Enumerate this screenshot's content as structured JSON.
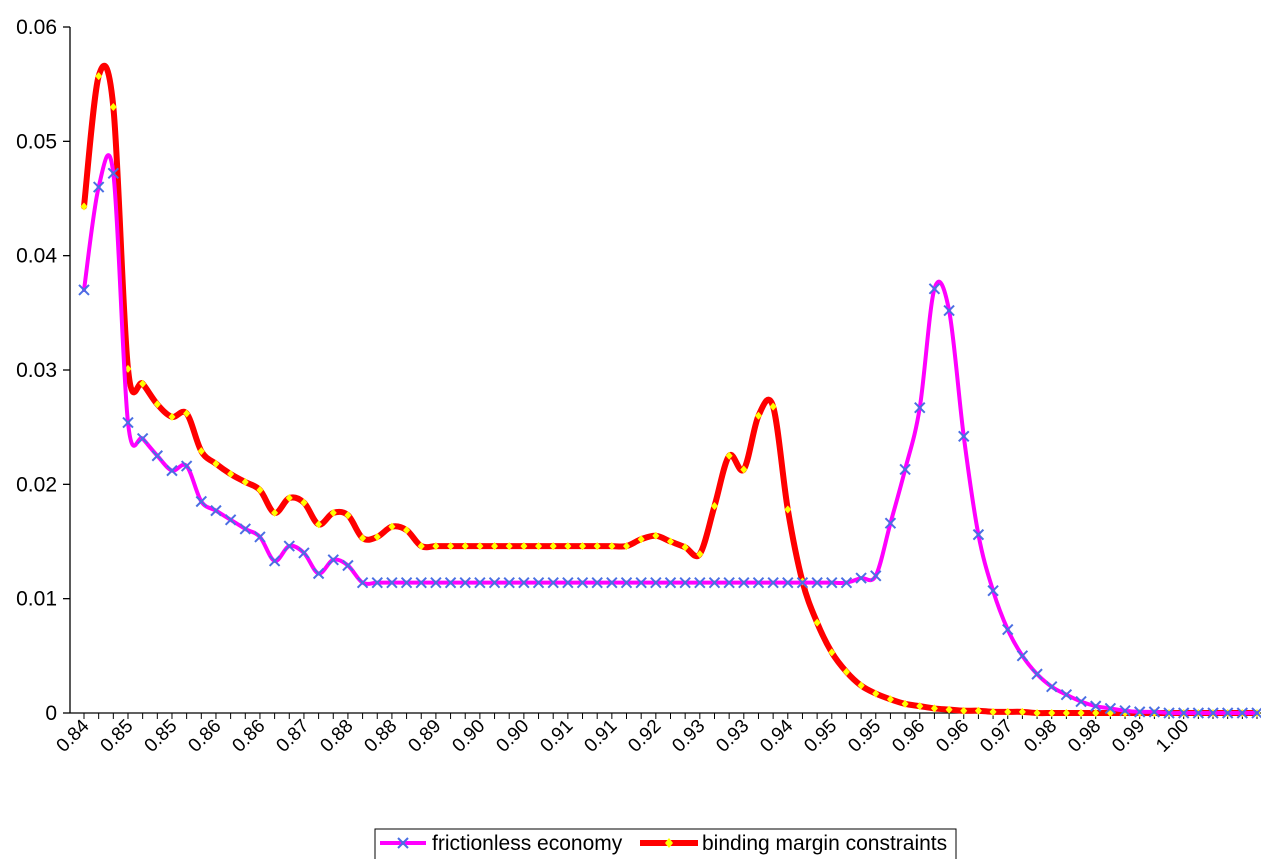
{
  "chart_data": {
    "type": "line",
    "title": "",
    "xlabel": "",
    "ylabel": "",
    "ylim": [
      0,
      0.06
    ],
    "yticks": [
      "0",
      "0.01",
      "0.02",
      "0.03",
      "0.04",
      "0.05",
      "0.06"
    ],
    "xtick_labels": [
      "0.84",
      "0.85",
      "0.85",
      "0.86",
      "0.86",
      "0.87",
      "0.88",
      "0.88",
      "0.89",
      "0.90",
      "0.90",
      "0.91",
      "0.91",
      "0.92",
      "0.93",
      "0.93",
      "0.94",
      "0.95",
      "0.95",
      "0.96",
      "0.96",
      "0.97",
      "0.98",
      "0.98",
      "0.99",
      "1.00"
    ],
    "grid": false,
    "legend_position": "bottom",
    "series": [
      {
        "name": "frictionless economy",
        "color": "#ff00ff",
        "marker_color": "#4a6fe3",
        "marker": "x-icon",
        "values": [
          0.037,
          0.046,
          0.0472,
          0.0254,
          0.024,
          0.0225,
          0.0212,
          0.0216,
          0.0185,
          0.0177,
          0.0169,
          0.0161,
          0.0154,
          0.0133,
          0.0146,
          0.014,
          0.0122,
          0.0134,
          0.0129,
          0.0114,
          0.0114,
          0.0114,
          0.0114,
          0.0114,
          0.0114,
          0.0114,
          0.0114,
          0.0114,
          0.0114,
          0.0114,
          0.0114,
          0.0114,
          0.0114,
          0.0114,
          0.0114,
          0.0114,
          0.0114,
          0.0114,
          0.0114,
          0.0114,
          0.0114,
          0.0114,
          0.0114,
          0.0114,
          0.0114,
          0.0114,
          0.0114,
          0.0114,
          0.0114,
          0.0114,
          0.0114,
          0.0114,
          0.0114,
          0.0118,
          0.012,
          0.0166,
          0.0213,
          0.0267,
          0.0371,
          0.0352,
          0.0242,
          0.0156,
          0.0107,
          0.0073,
          0.005,
          0.0034,
          0.0023,
          0.0016,
          0.001,
          0.0006,
          0.0004,
          0.0002,
          0.0001,
          0.0001,
          0.0,
          0.0,
          0.0,
          0.0,
          0.0,
          0.0,
          0.0
        ]
      },
      {
        "name": "binding margin constraints",
        "color": "#ff0000",
        "marker_color": "#ffff00",
        "marker": "diamond-icon",
        "values": [
          0.0443,
          0.0557,
          0.053,
          0.0301,
          0.0288,
          0.027,
          0.0259,
          0.0262,
          0.0229,
          0.0218,
          0.0209,
          0.0202,
          0.0195,
          0.0175,
          0.0188,
          0.0184,
          0.0165,
          0.0175,
          0.0173,
          0.0153,
          0.0154,
          0.0163,
          0.016,
          0.0146,
          0.0146,
          0.0146,
          0.0146,
          0.0146,
          0.0146,
          0.0146,
          0.0146,
          0.0146,
          0.0146,
          0.0146,
          0.0146,
          0.0146,
          0.0146,
          0.0146,
          0.0152,
          0.0155,
          0.015,
          0.0145,
          0.0139,
          0.0181,
          0.0225,
          0.0213,
          0.026,
          0.0268,
          0.0178,
          0.0115,
          0.0079,
          0.0053,
          0.0036,
          0.0024,
          0.0017,
          0.0012,
          0.0008,
          0.0006,
          0.0004,
          0.0003,
          0.0002,
          0.0002,
          0.0001,
          0.0001,
          0.0001,
          0.0,
          0.0,
          0.0,
          0.0,
          0.0,
          0.0,
          0.0,
          0.0,
          0.0,
          0.0,
          0.0,
          0.0,
          0.0,
          0.0,
          0.0,
          0.0
        ]
      }
    ]
  }
}
